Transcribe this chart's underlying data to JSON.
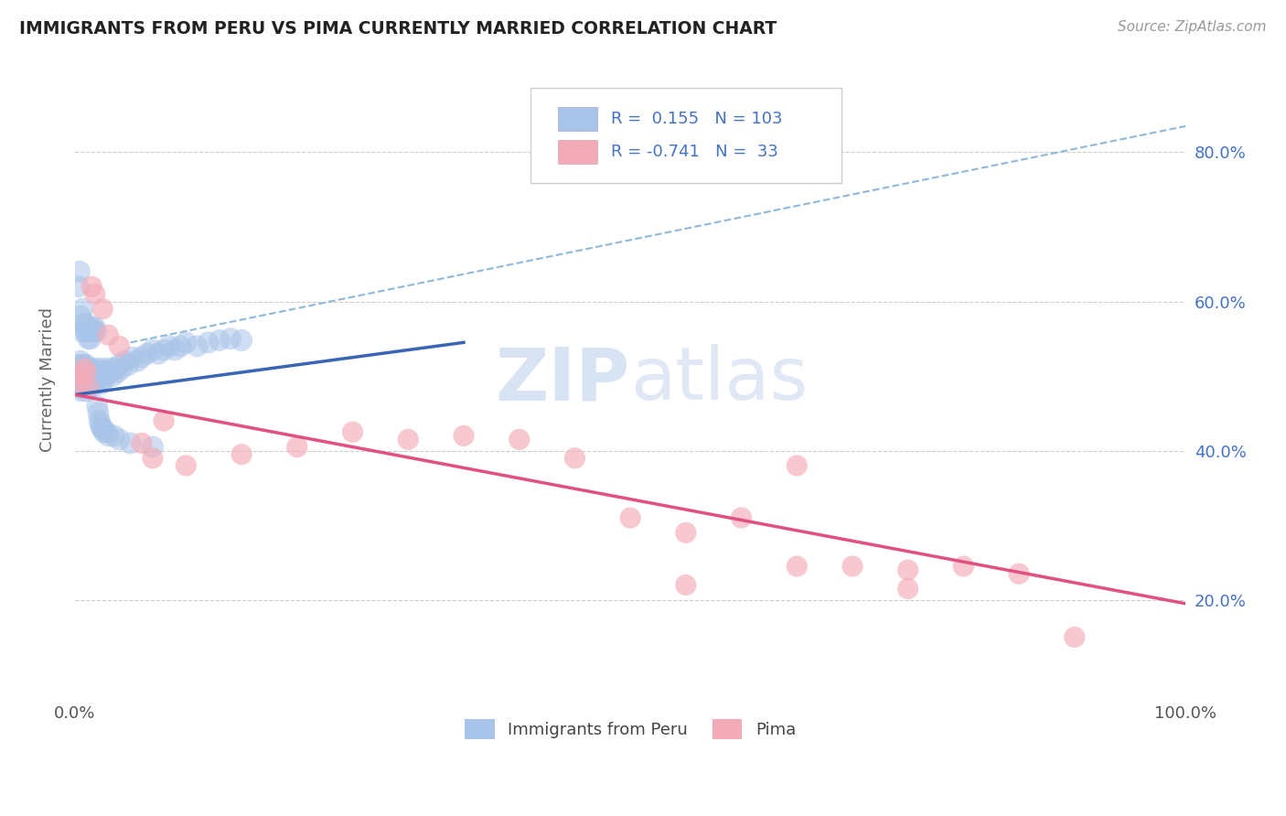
{
  "title": "IMMIGRANTS FROM PERU VS PIMA CURRENTLY MARRIED CORRELATION CHART",
  "source_text": "Source: ZipAtlas.com",
  "ylabel": "Currently Married",
  "right_yticklabels": [
    "20.0%",
    "40.0%",
    "60.0%",
    "80.0%"
  ],
  "right_yticks": [
    0.2,
    0.4,
    0.6,
    0.8
  ],
  "series1_label": "Immigrants from Peru",
  "series2_label": "Pima",
  "series1_color": "#a8c4e8",
  "series2_color": "#f4abb8",
  "trendline1_color": "#3865b5",
  "trendline2_color": "#e05080",
  "dashed_line_color": "#90b8d8",
  "blue_text_color": "#4472C4",
  "watermark_color": "#c8d8f0",
  "xlim": [
    0.0,
    1.0
  ],
  "ylim": [
    0.07,
    0.92
  ],
  "blue_trendline_x": [
    0.0,
    0.35
  ],
  "blue_trendline_y": [
    0.475,
    0.545
  ],
  "pink_trendline_x": [
    0.0,
    1.0
  ],
  "pink_trendline_y": [
    0.475,
    0.195
  ],
  "dash_trendline_x": [
    0.05,
    1.0
  ],
  "dash_trendline_y": [
    0.545,
    0.835
  ],
  "peru_x": [
    0.002,
    0.003,
    0.003,
    0.004,
    0.004,
    0.004,
    0.005,
    0.005,
    0.005,
    0.005,
    0.006,
    0.006,
    0.006,
    0.006,
    0.007,
    0.007,
    0.007,
    0.008,
    0.008,
    0.008,
    0.009,
    0.009,
    0.01,
    0.01,
    0.01,
    0.011,
    0.011,
    0.012,
    0.012,
    0.013,
    0.013,
    0.014,
    0.014,
    0.015,
    0.015,
    0.016,
    0.017,
    0.018,
    0.019,
    0.02,
    0.021,
    0.022,
    0.023,
    0.024,
    0.025,
    0.026,
    0.027,
    0.028,
    0.03,
    0.032,
    0.034,
    0.036,
    0.038,
    0.04,
    0.042,
    0.045,
    0.048,
    0.052,
    0.056,
    0.06,
    0.065,
    0.07,
    0.075,
    0.08,
    0.085,
    0.09,
    0.095,
    0.1,
    0.11,
    0.12,
    0.13,
    0.14,
    0.15,
    0.003,
    0.004,
    0.005,
    0.006,
    0.007,
    0.008,
    0.009,
    0.01,
    0.011,
    0.012,
    0.013,
    0.014,
    0.015,
    0.016,
    0.017,
    0.018,
    0.019,
    0.02,
    0.021,
    0.022,
    0.023,
    0.024,
    0.025,
    0.026,
    0.028,
    0.03,
    0.035,
    0.04,
    0.05,
    0.07
  ],
  "peru_y": [
    0.5,
    0.485,
    0.51,
    0.495,
    0.505,
    0.515,
    0.49,
    0.5,
    0.51,
    0.52,
    0.48,
    0.495,
    0.505,
    0.515,
    0.49,
    0.5,
    0.51,
    0.485,
    0.5,
    0.515,
    0.495,
    0.51,
    0.48,
    0.5,
    0.515,
    0.49,
    0.505,
    0.485,
    0.51,
    0.495,
    0.505,
    0.49,
    0.51,
    0.485,
    0.5,
    0.51,
    0.495,
    0.505,
    0.49,
    0.5,
    0.51,
    0.495,
    0.505,
    0.49,
    0.505,
    0.495,
    0.51,
    0.5,
    0.505,
    0.51,
    0.5,
    0.51,
    0.505,
    0.515,
    0.51,
    0.52,
    0.515,
    0.525,
    0.52,
    0.525,
    0.53,
    0.535,
    0.53,
    0.535,
    0.54,
    0.535,
    0.54,
    0.545,
    0.54,
    0.545,
    0.548,
    0.55,
    0.548,
    0.62,
    0.64,
    0.58,
    0.56,
    0.59,
    0.57,
    0.56,
    0.57,
    0.56,
    0.55,
    0.56,
    0.55,
    0.56,
    0.565,
    0.56,
    0.565,
    0.56,
    0.46,
    0.45,
    0.44,
    0.435,
    0.43,
    0.43,
    0.425,
    0.425,
    0.42,
    0.42,
    0.415,
    0.41,
    0.405
  ],
  "pima_x": [
    0.003,
    0.005,
    0.008,
    0.01,
    0.012,
    0.015,
    0.018,
    0.025,
    0.03,
    0.04,
    0.06,
    0.07,
    0.08,
    0.1,
    0.15,
    0.2,
    0.25,
    0.3,
    0.35,
    0.4,
    0.45,
    0.5,
    0.55,
    0.6,
    0.65,
    0.7,
    0.75,
    0.8,
    0.85,
    0.9,
    0.55,
    0.65,
    0.75
  ],
  "pima_y": [
    0.5,
    0.49,
    0.51,
    0.505,
    0.485,
    0.62,
    0.61,
    0.59,
    0.555,
    0.54,
    0.41,
    0.39,
    0.44,
    0.38,
    0.395,
    0.405,
    0.425,
    0.415,
    0.42,
    0.415,
    0.39,
    0.31,
    0.29,
    0.31,
    0.38,
    0.245,
    0.24,
    0.245,
    0.235,
    0.15,
    0.22,
    0.245,
    0.215
  ]
}
